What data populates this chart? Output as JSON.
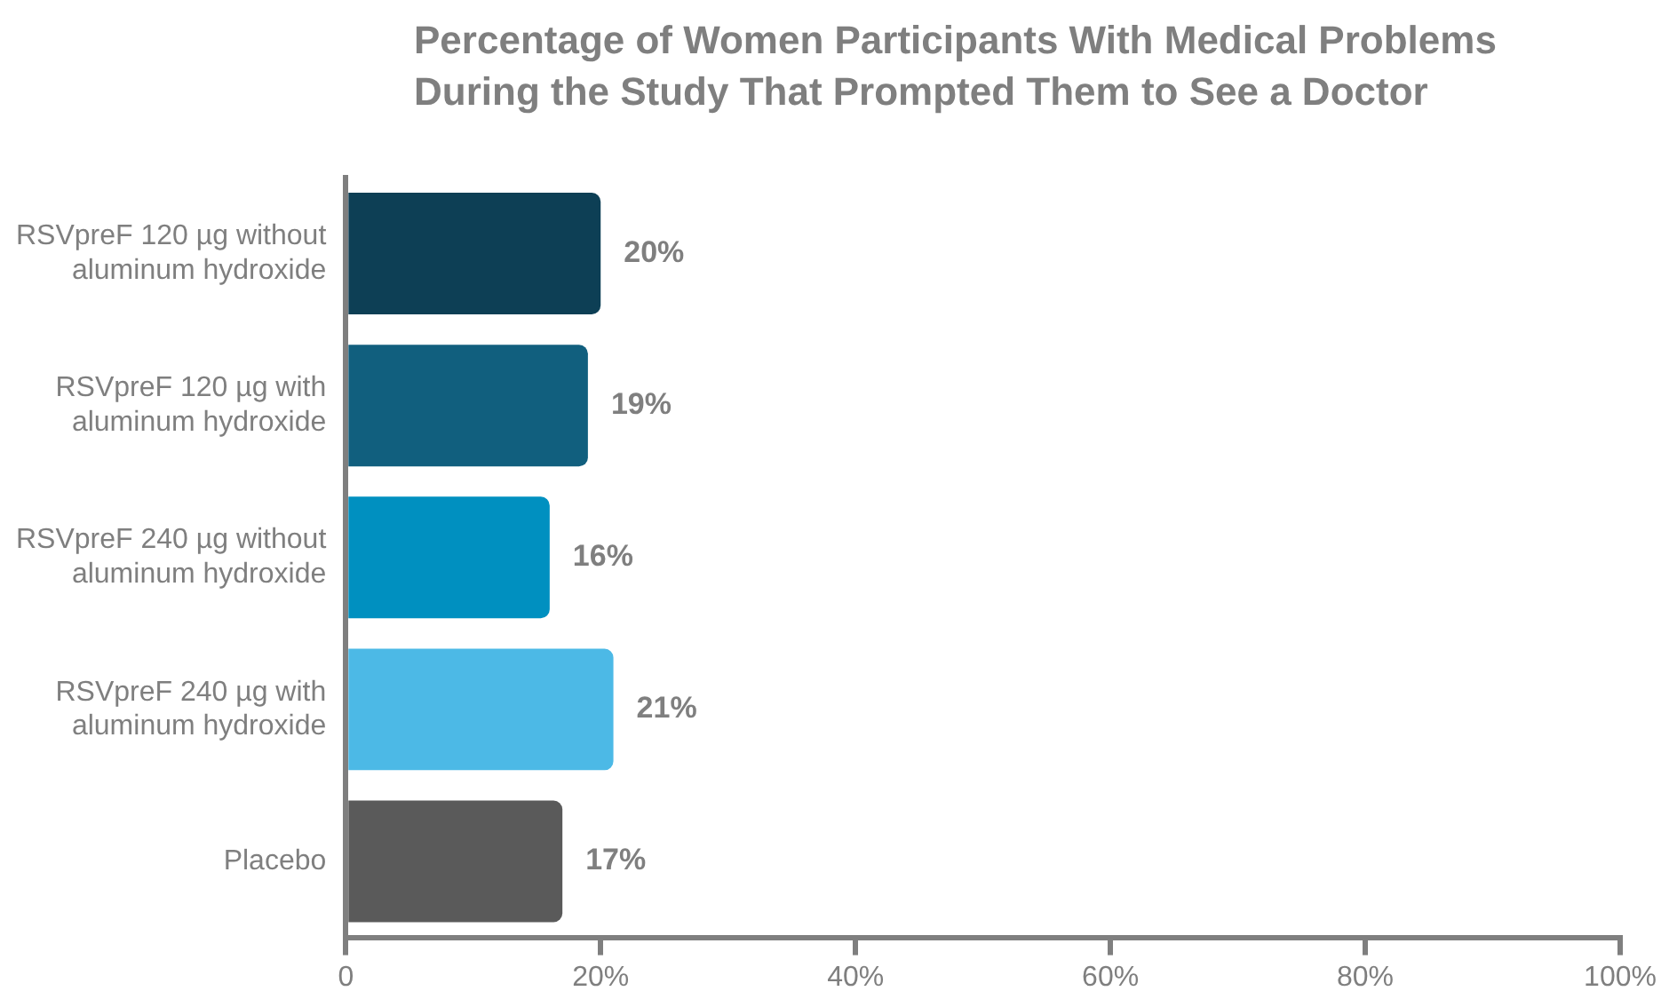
{
  "chart_data": {
    "type": "bar",
    "orientation": "horizontal",
    "title": "Percentage of Women Participants With Medical Problems During the Study That Prompted Them to See a Doctor",
    "categories": [
      "RSVpreF 120 µg without aluminum hydroxide",
      "RSVpreF 120 µg with aluminum hydroxide",
      "RSVpreF 240 µg without aluminum hydroxide",
      "RSVpreF 240 µg with aluminum hydroxide",
      "Placebo"
    ],
    "values": [
      20,
      19,
      16,
      21,
      17
    ],
    "colors": [
      "#0d3f55",
      "#115f7e",
      "#0090c0",
      "#4cb9e6",
      "#5a5a5a"
    ],
    "value_labels": [
      "20%",
      "19%",
      "16%",
      "21%",
      "17%"
    ],
    "xlim": [
      0,
      100
    ],
    "xticks": [
      0,
      {
        "value": 20,
        "label": "20%"
      },
      {
        "value": 40,
        "label": "40%"
      },
      {
        "value": 60,
        "label": "60%"
      },
      {
        "value": 80,
        "label": "80%"
      },
      {
        "value": 100,
        "label": "100%"
      }
    ],
    "grid": false,
    "legend": false
  }
}
